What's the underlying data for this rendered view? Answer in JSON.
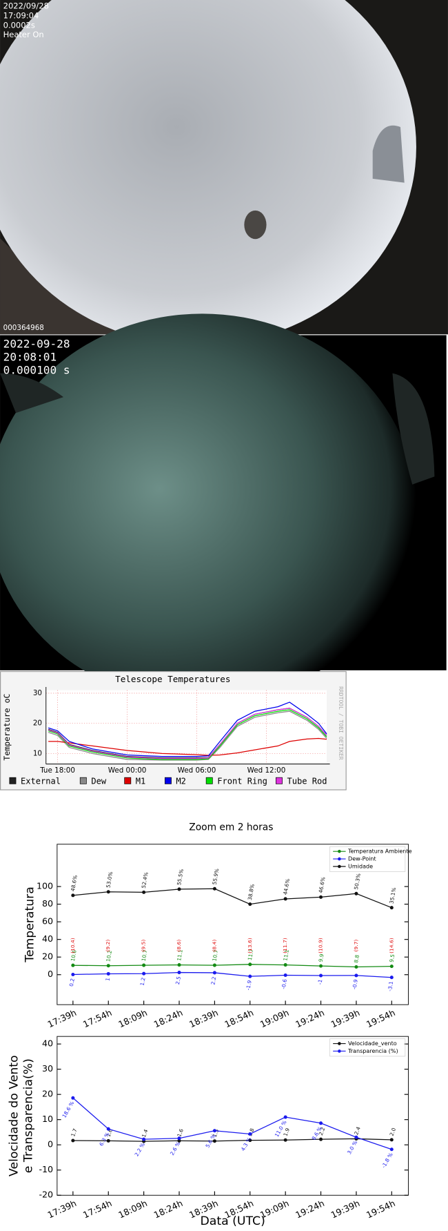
{
  "images": [
    {
      "lines": [
        "2022/09/28",
        "17:09:04",
        "0.0002s",
        "Heater On"
      ],
      "footer": "000364968"
    },
    {
      "lines": [
        "2022-09-28",
        "20:08:01",
        "0.000100 s"
      ]
    }
  ],
  "chart_data": [
    {
      "type": "line",
      "title": "Telescope Temperatures",
      "y_label": "Temperature oC",
      "watermark": "RRDTOOL / TOBI OETIKER",
      "grid": true,
      "x": [
        17.2,
        18,
        19,
        21,
        24,
        27,
        30,
        31,
        32,
        33.5,
        35,
        37,
        38,
        39.5,
        40.5,
        41.2
      ],
      "xlim": [
        17,
        41.2
      ],
      "xticks": [
        {
          "value": 18,
          "label": "Tue 18:00"
        },
        {
          "value": 24,
          "label": "Wed 00:00"
        },
        {
          "value": 30,
          "label": "Wed 06:00"
        },
        {
          "value": 36,
          "label": "Wed 12:00"
        }
      ],
      "ylim": [
        6.5,
        31
      ],
      "yticks": [
        10,
        20,
        30
      ],
      "series": [
        {
          "name": "External",
          "color": "#222222",
          "values": [
            18,
            17,
            13,
            11,
            9,
            8.5,
            8.5,
            8.6,
            13,
            20,
            23,
            24.5,
            25,
            22,
            19,
            16
          ]
        },
        {
          "name": "Dew",
          "color": "#888888",
          "values": [
            17,
            16,
            12,
            10,
            8,
            7.8,
            7.8,
            8,
            12,
            19,
            22,
            23.5,
            24,
            21,
            18,
            15
          ]
        },
        {
          "name": "M1",
          "color": "#dd0000",
          "values": [
            14,
            14,
            13.5,
            12.5,
            11,
            10,
            9.6,
            9.4,
            9.5,
            10.2,
            11.2,
            12.5,
            14,
            14.8,
            15,
            14.7
          ]
        },
        {
          "name": "M2",
          "color": "#0000ee",
          "values": [
            18.5,
            17.5,
            14,
            11.5,
            9.5,
            9,
            9,
            9.2,
            14,
            21,
            24,
            25.5,
            27,
            23,
            20,
            16.5
          ]
        },
        {
          "name": "Front Ring",
          "color": "#00dd00",
          "values": [
            17.5,
            16.5,
            12.5,
            10.5,
            8.5,
            8,
            8,
            8.2,
            12.5,
            19.5,
            22.5,
            24,
            24.5,
            21.5,
            18.5,
            15.5
          ]
        },
        {
          "name": "Tube Rod",
          "color": "#dd33dd",
          "values": [
            17.8,
            16.8,
            12.8,
            10.8,
            8.8,
            8.3,
            8.3,
            8.5,
            13,
            20,
            23,
            24.5,
            25,
            22,
            19,
            16
          ]
        }
      ]
    },
    {
      "type": "line",
      "title": "Zoom em 2 horas",
      "y_label": "Temperatura",
      "categories": [
        "17:39h",
        "17:54h",
        "18:09h",
        "18:24h",
        "18:39h",
        "18:54h",
        "19:09h",
        "19:24h",
        "19:39h",
        "19:54h"
      ],
      "ylim": [
        -34,
        148
      ],
      "yticks": [
        0,
        20,
        40,
        60,
        80,
        100
      ],
      "legend": "upper right",
      "series": [
        {
          "name": "Temperatura Ambiente",
          "color": "#138a13",
          "values": [
            10.6,
            10.2,
            10.7,
            11.1,
            10.7,
            11.7,
            11.1,
            9.9,
            8.8,
            9.5
          ]
        },
        {
          "name": "Dew-Point",
          "color": "#1a1aee",
          "values": [
            0.2,
            1.0,
            1.2,
            2.5,
            2.2,
            -1.9,
            -0.6,
            -1.0,
            -0.9,
            -3.1
          ]
        },
        {
          "name": "Umidade",
          "color": "#111111",
          "values": [
            90,
            94,
            93.5,
            97,
            97.5,
            80,
            86,
            88,
            92,
            76
          ],
          "annotations": [
            "48.6%",
            "53.0%",
            "52.4%",
            "55.5%",
            "55.9%",
            "38.8%",
            "44.6%",
            "46.6%",
            "50.3%",
            "35.1%"
          ]
        }
      ],
      "annotations": [
        "(10.4)",
        "(9.2)",
        "(9.5)",
        "(8.6)",
        "(8.4)",
        "(13.6)",
        "(11.7)",
        "(10.9)",
        "(9.7)",
        "(14.6)"
      ]
    },
    {
      "type": "line",
      "y_label": [
        "Velocidade do Vento",
        "e Transparencia(%)"
      ],
      "x_label": "Data (UTC)",
      "categories": [
        "17:39h",
        "17:54h",
        "18:09h",
        "18:24h",
        "18:39h",
        "18:54h",
        "19:09h",
        "19:24h",
        "19:39h",
        "19:54h"
      ],
      "ylim": [
        -20,
        43
      ],
      "yticks": [
        -20,
        -10,
        0,
        10,
        20,
        30,
        40
      ],
      "legend": "upper right",
      "series": [
        {
          "name": "Velocidade_vento",
          "color": "#111111",
          "values": [
            1.7,
            1.6,
            1.4,
            1.6,
            1.5,
            1.8,
            1.9,
            2.2,
            2.4,
            2.0
          ],
          "value_labels": [
            "1.7",
            "1.6",
            "1.4",
            "1.6",
            "1.5",
            "1.8",
            "1.9",
            "2.2",
            "2.4",
            "2.0"
          ]
        },
        {
          "name": "Transparencia (%)",
          "color": "#1a1aee",
          "values": [
            18.6,
            6.3,
            2.2,
            2.6,
            5.6,
            4.3,
            11.0,
            8.6,
            3.0,
            -1.8
          ],
          "value_labels": [
            "18.6 %",
            "6.3 %",
            "2.2 %",
            "2.6 %",
            "5.6 %",
            "4.3 %",
            "11.0 %",
            "8.6 %",
            "3.0 %",
            "-1.8 %"
          ]
        }
      ]
    }
  ]
}
